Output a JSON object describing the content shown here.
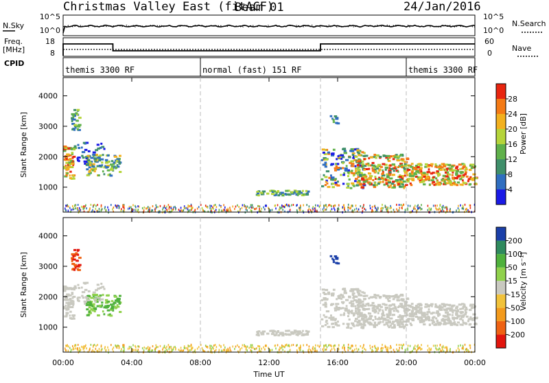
{
  "header": {
    "title": "Christmas Valley East (fitACF)",
    "beam": "Beam 01",
    "date": "24/Jan/2016"
  },
  "noise_panel": {
    "left_label": "N.Sky",
    "right_label": "N.Search",
    "left_ticks": [
      "10^5",
      "10^0"
    ],
    "right_ticks": [
      "10^5",
      "10^0"
    ]
  },
  "freq_panel": {
    "left_label_line1": "Freq.",
    "left_label_line2": "[MHz]",
    "right_label": "Nave",
    "left_ticks": [
      "18",
      "8"
    ],
    "right_ticks": [
      "60",
      "0"
    ]
  },
  "cpid": {
    "label": "CPID",
    "segments": [
      {
        "name": "themis 3300 RF",
        "start_h": 0,
        "end_h": 8
      },
      {
        "name": "normal (fast) 151 RF",
        "start_h": 8,
        "end_h": 20
      },
      {
        "name": "themis 3300 RF",
        "start_h": 20,
        "end_h": 24
      }
    ]
  },
  "chart_data": [
    {
      "type": "heatmap",
      "name": "power",
      "ylabel": "Slant Range [km]",
      "yticks": [
        "1000",
        "2000",
        "3000",
        "4000"
      ],
      "ylim": [
        180,
        4600
      ],
      "colorbar_label": "Power [dB]",
      "colorbar_ticks": [
        "4",
        "8",
        "12",
        "16",
        "20",
        "24",
        "28"
      ],
      "colorbar_range": [
        0,
        32
      ],
      "colorbar_colors": [
        "#1a1ae6",
        "#2f6ec0",
        "#3f8f6a",
        "#5fb04a",
        "#b5d43a",
        "#f2b01e",
        "#f47a15",
        "#e8250f"
      ],
      "xlim_h": [
        0,
        24
      ]
    },
    {
      "type": "heatmap",
      "name": "velocity",
      "ylabel": "Slant Range [km]",
      "yticks": [
        "1000",
        "2000",
        "3000",
        "4000"
      ],
      "ylim": [
        180,
        4600
      ],
      "colorbar_label": "Velocity [m s⁻¹]",
      "colorbar_ticks": [
        "200",
        "100",
        "50",
        "15",
        "-15",
        "-50",
        "-100",
        "-200"
      ],
      "colorbar_colors": [
        "#1a3fa8",
        "#2f8a5e",
        "#4fb13c",
        "#90d14c",
        "#c9c9c0",
        "#f1c23a",
        "#f39a1c",
        "#ef6213",
        "#e2150d"
      ],
      "xlim_h": [
        0,
        24
      ]
    }
  ],
  "xaxis": {
    "ticks": [
      "00:00",
      "04:00",
      "08:00",
      "12:00",
      "16:00",
      "20:00",
      "00:00"
    ],
    "label": "Time UT"
  },
  "colors": {
    "power_scale": [
      "#1a1ae6",
      "#2f6ec0",
      "#3f8f6a",
      "#5fb04a",
      "#b5d43a",
      "#f2b01e",
      "#f47a15",
      "#e8250f"
    ],
    "velocity_grey": "#c9c9c0"
  }
}
